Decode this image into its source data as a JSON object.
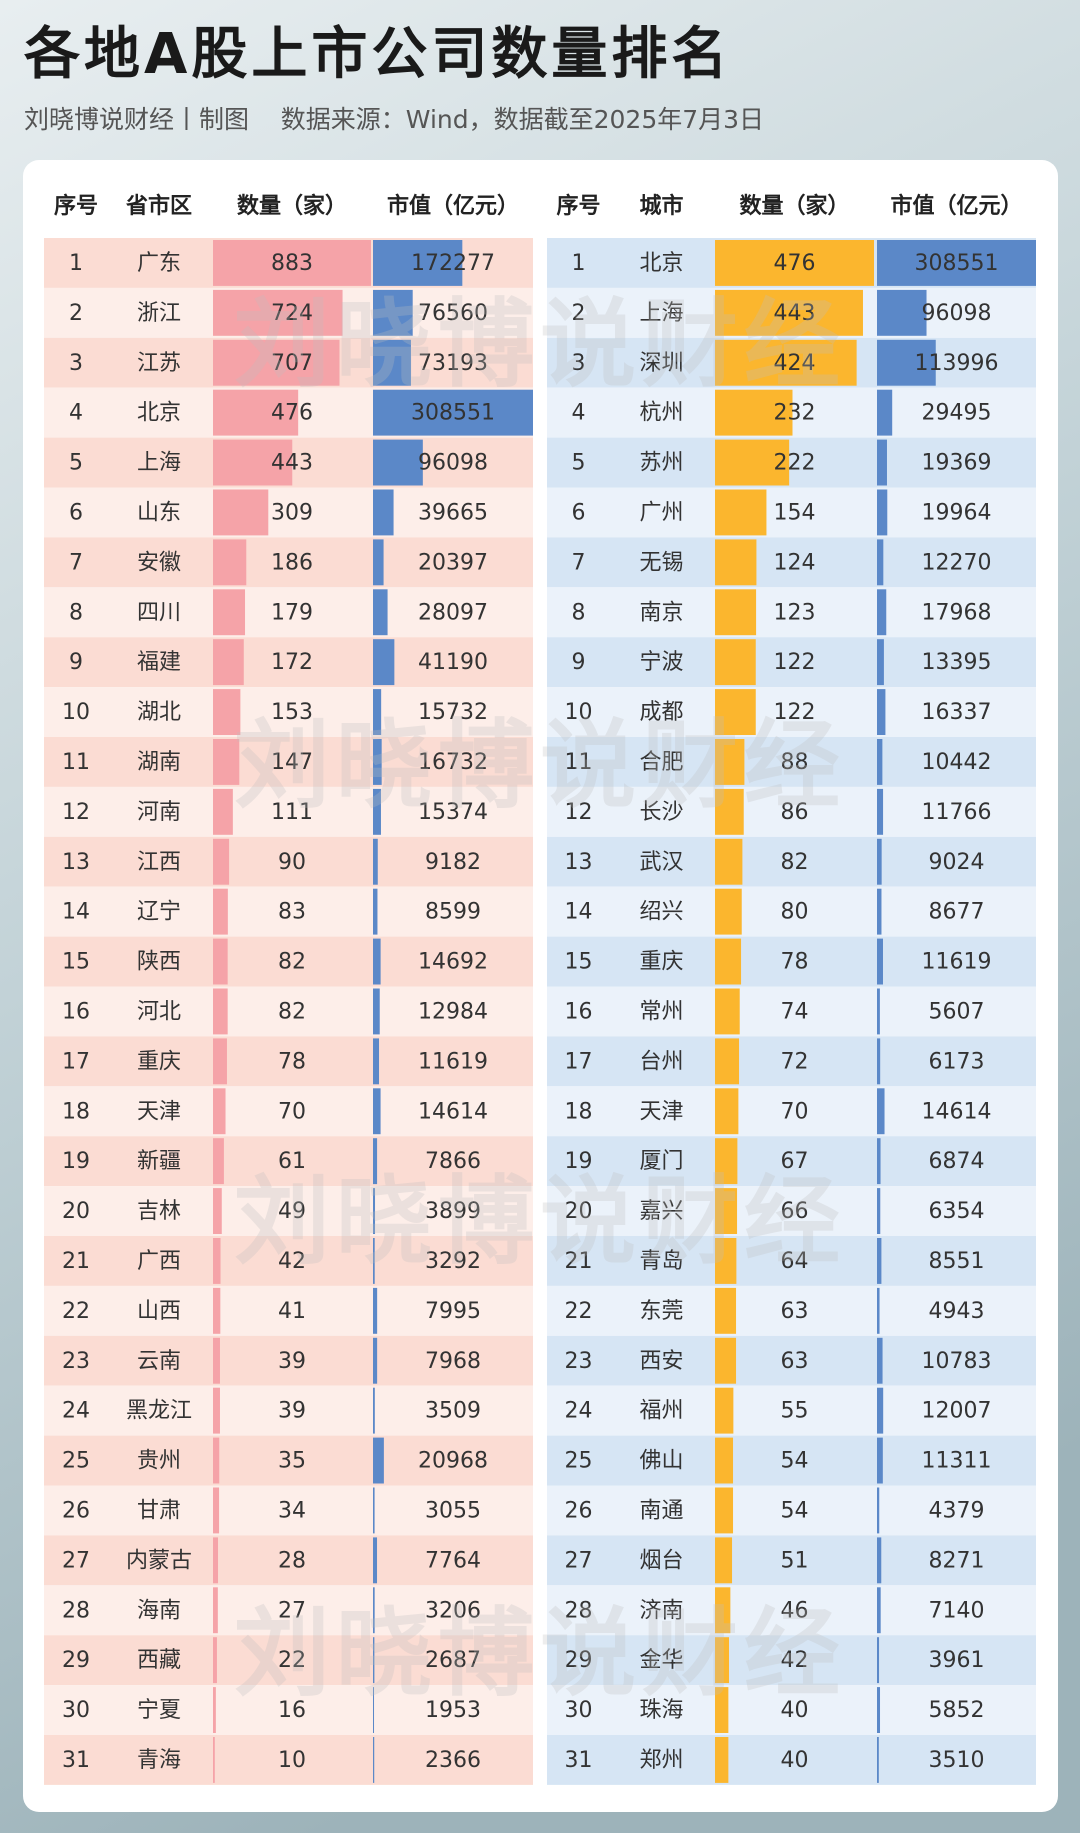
{
  "header": {
    "title": "各地A股上市公司数量排名",
    "subtitle": "刘晓博说财经丨制图    数据来源：Wind，数据截至2025年7月3日"
  },
  "watermark": "刘晓博说财经",
  "tables": [
    {
      "headers": [
        "序号",
        "省市区",
        "数量（家）",
        "市值（亿元）"
      ],
      "rows": [
        [
          1,
          "广东",
          883,
          172277
        ],
        [
          2,
          "浙江",
          724,
          76560
        ],
        [
          3,
          "江苏",
          707,
          73193
        ],
        [
          4,
          "北京",
          476,
          308551
        ],
        [
          5,
          "上海",
          443,
          96098
        ],
        [
          6,
          "山东",
          309,
          39665
        ],
        [
          7,
          "安徽",
          186,
          20397
        ],
        [
          8,
          "四川",
          179,
          28097
        ],
        [
          9,
          "福建",
          172,
          41190
        ],
        [
          10,
          "湖北",
          153,
          15732
        ],
        [
          11,
          "湖南",
          147,
          16732
        ],
        [
          12,
          "河南",
          111,
          15374
        ],
        [
          13,
          "江西",
          90,
          9182
        ],
        [
          14,
          "辽宁",
          83,
          8599
        ],
        [
          15,
          "陕西",
          82,
          14692
        ],
        [
          16,
          "河北",
          82,
          12984
        ],
        [
          17,
          "重庆",
          78,
          11619
        ],
        [
          18,
          "天津",
          70,
          14614
        ],
        [
          19,
          "新疆",
          61,
          7866
        ],
        [
          20,
          "吉林",
          49,
          3899
        ],
        [
          21,
          "广西",
          42,
          3292
        ],
        [
          22,
          "山西",
          41,
          7995
        ],
        [
          23,
          "云南",
          39,
          7968
        ],
        [
          24,
          "黑龙江",
          39,
          3509
        ],
        [
          25,
          "贵州",
          35,
          20968
        ],
        [
          26,
          "甘肃",
          34,
          3055
        ],
        [
          27,
          "内蒙古",
          28,
          7764
        ],
        [
          28,
          "海南",
          27,
          3206
        ],
        [
          29,
          "西藏",
          22,
          2687
        ],
        [
          30,
          "宁夏",
          16,
          1953
        ],
        [
          31,
          "青海",
          10,
          2366
        ]
      ]
    },
    {
      "headers": [
        "序号",
        "城市",
        "数量（家）",
        "市值（亿元）"
      ],
      "rows": [
        [
          1,
          "北京",
          476,
          308551
        ],
        [
          2,
          "上海",
          443,
          96098
        ],
        [
          3,
          "深圳",
          424,
          113996
        ],
        [
          4,
          "杭州",
          232,
          29495
        ],
        [
          5,
          "苏州",
          222,
          19369
        ],
        [
          6,
          "广州",
          154,
          19964
        ],
        [
          7,
          "无锡",
          124,
          12270
        ],
        [
          8,
          "南京",
          123,
          17968
        ],
        [
          9,
          "宁波",
          122,
          13395
        ],
        [
          10,
          "成都",
          122,
          16337
        ],
        [
          11,
          "合肥",
          88,
          10442
        ],
        [
          12,
          "长沙",
          86,
          11766
        ],
        [
          13,
          "武汉",
          82,
          9024
        ],
        [
          14,
          "绍兴",
          80,
          8677
        ],
        [
          15,
          "重庆",
          78,
          11619
        ],
        [
          16,
          "常州",
          74,
          5607
        ],
        [
          17,
          "台州",
          72,
          6173
        ],
        [
          18,
          "天津",
          70,
          14614
        ],
        [
          19,
          "厦门",
          67,
          6874
        ],
        [
          20,
          "嘉兴",
          66,
          6354
        ],
        [
          21,
          "青岛",
          64,
          8551
        ],
        [
          22,
          "东莞",
          63,
          4943
        ],
        [
          23,
          "西安",
          63,
          10783
        ],
        [
          24,
          "福州",
          55,
          12007
        ],
        [
          25,
          "佛山",
          54,
          11311
        ],
        [
          26,
          "南通",
          54,
          4379
        ],
        [
          27,
          "烟台",
          51,
          8271
        ],
        [
          28,
          "济南",
          46,
          7140
        ],
        [
          29,
          "金华",
          42,
          3961
        ],
        [
          30,
          "珠海",
          40,
          5852
        ],
        [
          31,
          "郑州",
          40,
          3510
        ]
      ]
    }
  ]
}
